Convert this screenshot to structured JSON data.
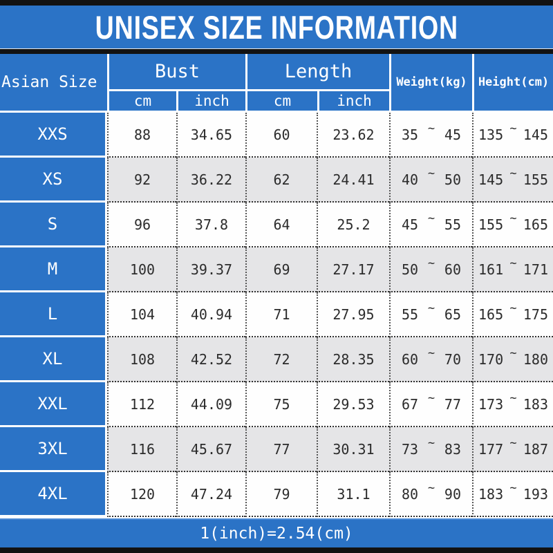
{
  "title": "UNISEX SIZE INFORMATION",
  "tilde": "~",
  "header": {
    "size_col": "Asian Size",
    "groups": [
      {
        "label": "Bust",
        "sub": [
          "cm",
          "inch"
        ]
      },
      {
        "label": "Length",
        "sub": [
          "cm",
          "inch"
        ]
      }
    ],
    "weight": "Weight(kg)",
    "height": "Height(cm)"
  },
  "rows": [
    {
      "size": "XXS",
      "bust_cm": "88",
      "bust_inch": "34.65",
      "length_cm": "60",
      "length_inch": "23.62",
      "weight_min": "35",
      "weight_max": "45",
      "height_min": "135",
      "height_max": "145"
    },
    {
      "size": "XS",
      "bust_cm": "92",
      "bust_inch": "36.22",
      "length_cm": "62",
      "length_inch": "24.41",
      "weight_min": "40",
      "weight_max": "50",
      "height_min": "145",
      "height_max": "155"
    },
    {
      "size": "S",
      "bust_cm": "96",
      "bust_inch": "37.8",
      "length_cm": "64",
      "length_inch": "25.2",
      "weight_min": "45",
      "weight_max": "55",
      "height_min": "155",
      "height_max": "165"
    },
    {
      "size": "M",
      "bust_cm": "100",
      "bust_inch": "39.37",
      "length_cm": "69",
      "length_inch": "27.17",
      "weight_min": "50",
      "weight_max": "60",
      "height_min": "161",
      "height_max": "171"
    },
    {
      "size": "L",
      "bust_cm": "104",
      "bust_inch": "40.94",
      "length_cm": "71",
      "length_inch": "27.95",
      "weight_min": "55",
      "weight_max": "65",
      "height_min": "165",
      "height_max": "175"
    },
    {
      "size": "XL",
      "bust_cm": "108",
      "bust_inch": "42.52",
      "length_cm": "72",
      "length_inch": "28.35",
      "weight_min": "60",
      "weight_max": "70",
      "height_min": "170",
      "height_max": "180"
    },
    {
      "size": "XXL",
      "bust_cm": "112",
      "bust_inch": "44.09",
      "length_cm": "75",
      "length_inch": "29.53",
      "weight_min": "67",
      "weight_max": "77",
      "height_min": "173",
      "height_max": "183"
    },
    {
      "size": "3XL",
      "bust_cm": "116",
      "bust_inch": "45.67",
      "length_cm": "77",
      "length_inch": "30.31",
      "weight_min": "73",
      "weight_max": "83",
      "height_min": "177",
      "height_max": "187"
    },
    {
      "size": "4XL",
      "bust_cm": "120",
      "bust_inch": "47.24",
      "length_cm": "79",
      "length_inch": "31.1",
      "weight_min": "80",
      "weight_max": "90",
      "height_min": "183",
      "height_max": "193"
    }
  ],
  "footer": "1(inch)=2.54(cm)",
  "colors": {
    "blue": "#2b73c6",
    "row_alt": "#e5e5e7",
    "bar": "#121212"
  }
}
